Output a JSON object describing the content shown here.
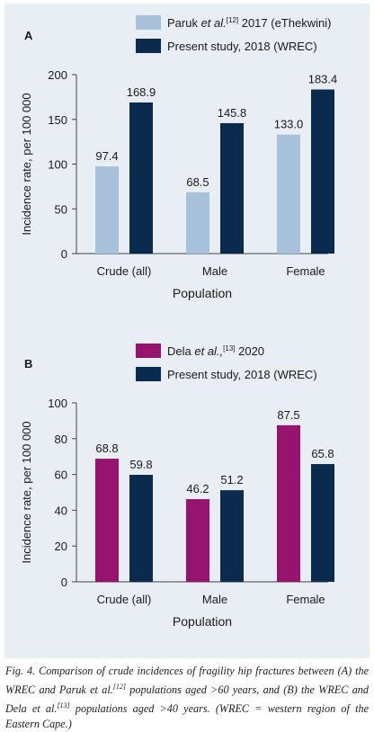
{
  "chart_data": [
    {
      "type": "bar",
      "panel_label": "A",
      "categories": [
        "Crude (all)",
        "Male",
        "Female"
      ],
      "series": [
        {
          "name": "Paruk et al.,[12] 2017 (eThekwini)",
          "values": [
            97.4,
            68.5,
            133.0
          ],
          "value_labels": [
            "97.4",
            "68.5",
            "133.0"
          ],
          "color": "#a7c1da"
        },
        {
          "name": "Present study, 2018 (WREC)",
          "values": [
            168.9,
            145.8,
            183.4
          ],
          "value_labels": [
            "168.9",
            "145.8",
            "183.4"
          ],
          "color": "#0a2b4e"
        }
      ],
      "legend": [
        {
          "pre": "Paruk ",
          "ital": "et al.",
          "sup": "[12]",
          "post": " 2017 (eThekwini)"
        },
        {
          "pre": "Present study, 2018 (WREC)",
          "ital": "",
          "sup": "",
          "post": ""
        }
      ],
      "xlabel": "Population",
      "ylabel": "Incidence rate, per 100 000",
      "ylim": [
        0,
        200
      ],
      "yticks": [
        0,
        50,
        100,
        150,
        200
      ],
      "grid": false,
      "legend_position": "top"
    },
    {
      "type": "bar",
      "panel_label": "B",
      "categories": [
        "Crude (all)",
        "Male",
        "Female"
      ],
      "series": [
        {
          "name": "Dela et al.,[13] 2020",
          "values": [
            68.8,
            46.2,
            87.5
          ],
          "value_labels": [
            "68.8",
            "46.2",
            "87.5"
          ],
          "color": "#97146e"
        },
        {
          "name": "Present study, 2018 (WREC)",
          "values": [
            59.8,
            51.2,
            65.8
          ],
          "value_labels": [
            "59.8",
            "51.2",
            "65.8"
          ],
          "color": "#0a2b4e"
        }
      ],
      "legend": [
        {
          "pre": "Dela ",
          "ital": "et al.,",
          "sup": "[13]",
          "post": " 2020"
        },
        {
          "pre": "Present study, 2018 (WREC)",
          "ital": "",
          "sup": "",
          "post": ""
        }
      ],
      "xlabel": "Population",
      "ylabel": "Incidence rate, per 100 000",
      "ylim": [
        0,
        100
      ],
      "yticks": [
        0,
        20,
        40,
        60,
        80,
        100
      ],
      "grid": false,
      "legend_position": "top"
    }
  ],
  "caption": {
    "fig": "Fig. 4.",
    "part1": " Comparison of crude incidences of fragility hip fractures between (A) the WREC and Paruk et al.",
    "ref1": "[12]",
    "part2": " populations aged >60 years, and (B) the WREC and Dela et al.",
    "ref2": "[13]",
    "part3": " populations aged >40 years. (WREC = western region of the Eastern Cape.)"
  }
}
